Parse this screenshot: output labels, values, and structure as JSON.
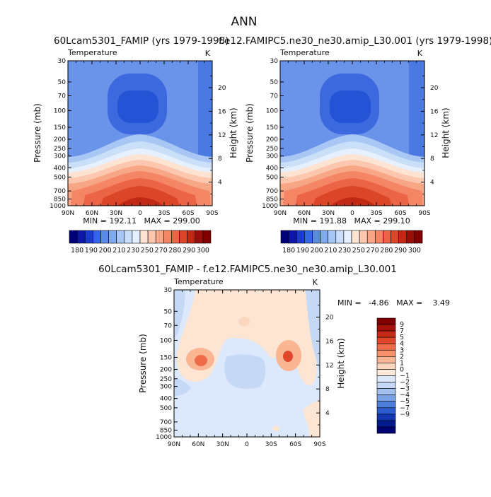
{
  "figure": {
    "title": "ANN"
  },
  "panels": {
    "p1": {
      "title": "60Lcam5301_FAMIP (yrs 1979-1998)",
      "variable": "Temperature",
      "units": "K",
      "ylabel": "Pressure (mb)",
      "ylabel_right": "Height (km)",
      "stats": "MIN = 192.11   MAX = 299.00"
    },
    "p2": {
      "title": "f.e12.FAMIPC5.ne30_ne30.amip_L30.001 (yrs 1979-1998)",
      "variable": "Temperature",
      "units": "K",
      "ylabel": "Pressure (mb)",
      "ylabel_right": "Height (km)",
      "stats": "MIN = 191.88   MAX = 299.10"
    },
    "p3": {
      "title": "60Lcam5301_FAMIP - f.e12.FAMIPC5.ne30_ne30.amip_L30.001",
      "variable": "Temperature",
      "units": "K",
      "ylabel": "Pressure (mb)",
      "ylabel_right": "Height (km)",
      "stats": "MIN =   -4.86   MAX =    3.49"
    }
  },
  "chart_data": [
    {
      "type": "heatmap",
      "title": "60Lcam5301_FAMIP (yrs 1979-1998)",
      "xlabel": "",
      "ylabel": "Pressure (mb)",
      "y2label": "Height (km)",
      "x_ticks": [
        "90N",
        "60N",
        "30N",
        "0",
        "30S",
        "60S",
        "90S"
      ],
      "y_ticks": [
        "30",
        "50",
        "70",
        "100",
        "150",
        "200",
        "250",
        "300",
        "400",
        "500",
        "700",
        "850",
        "1000"
      ],
      "y2_ticks": [
        "4",
        "8",
        "12",
        "16",
        "20"
      ],
      "y_scale": "log",
      "stats": {
        "min": 192.11,
        "max": 299.0
      },
      "colorbar_levels": [
        "180",
        "190",
        "200",
        "210",
        "230",
        "250",
        "270",
        "280",
        "290",
        "300"
      ]
    },
    {
      "type": "heatmap",
      "title": "f.e12.FAMIPC5.ne30_ne30.amip_L30.001 (yrs 1979-1998)",
      "xlabel": "",
      "ylabel": "Pressure (mb)",
      "y2label": "Height (km)",
      "x_ticks": [
        "90N",
        "60N",
        "30N",
        "0",
        "30S",
        "60S",
        "90S"
      ],
      "y_ticks": [
        "30",
        "50",
        "70",
        "100",
        "150",
        "200",
        "250",
        "300",
        "400",
        "500",
        "700",
        "850",
        "1000"
      ],
      "y2_ticks": [
        "4",
        "8",
        "12",
        "16",
        "20"
      ],
      "y_scale": "log",
      "stats": {
        "min": 191.88,
        "max": 299.1
      },
      "colorbar_levels": [
        "180",
        "190",
        "200",
        "210",
        "230",
        "250",
        "270",
        "280",
        "290",
        "300"
      ]
    },
    {
      "type": "heatmap",
      "title": "60Lcam5301_FAMIP - f.e12.FAMIPC5.ne30_ne30.amip_L30.001",
      "xlabel": "",
      "ylabel": "Pressure (mb)",
      "y2label": "Height (km)",
      "x_ticks": [
        "90N",
        "60N",
        "30N",
        "0",
        "30S",
        "60S",
        "90S"
      ],
      "y_ticks": [
        "30",
        "50",
        "70",
        "100",
        "150",
        "200",
        "250",
        "300",
        "400",
        "500",
        "700",
        "850",
        "1000"
      ],
      "y2_ticks": [
        "4",
        "8",
        "12",
        "16",
        "20"
      ],
      "y_scale": "log",
      "stats": {
        "min": -4.86,
        "max": 3.49
      },
      "colorbar_levels": [
        "9",
        "7",
        "5",
        "4",
        "3",
        "2",
        "1",
        "0",
        "-1",
        "-2",
        "-3",
        "-4",
        "-5",
        "-7",
        "-9"
      ]
    }
  ],
  "colors": {
    "abs_scale": [
      "#00007a",
      "#0c16a8",
      "#1a3ad0",
      "#3366e0",
      "#5a8ae8",
      "#80aaf0",
      "#a6c6f6",
      "#c8ddf9",
      "#e6efff",
      "#fde3d2",
      "#fcc7ae",
      "#f8a786",
      "#f48666",
      "#ec6446",
      "#dc4628",
      "#c02a14",
      "#980e08",
      "#800000"
    ],
    "diff_scale": [
      "#800000",
      "#a5100a",
      "#c62a18",
      "#e0472c",
      "#ef6b4a",
      "#f6926c",
      "#fab592",
      "#fdd6bf",
      "#fde9dc",
      "#dce9fc",
      "#c5d9f6",
      "#a2c0ee",
      "#7aa2e6",
      "#4f7fdc",
      "#2d5bd0",
      "#1436b0",
      "#031a8c",
      "#000070"
    ]
  }
}
